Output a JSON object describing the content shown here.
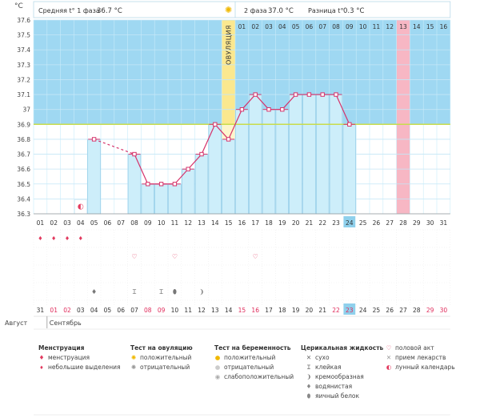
{
  "chart_data": {
    "type": "line",
    "ylabel": "°C",
    "y_ticks": [
      "36.3",
      "36.4",
      "36.5",
      "36.6",
      "36.7",
      "36.8",
      "36.9",
      "37",
      "37.1",
      "37.2",
      "37.3",
      "37.4",
      "37.5",
      "37.6"
    ],
    "ylim": [
      36.3,
      37.6
    ],
    "coverline": 36.9,
    "phase1_label": "Средняя t° 1 фаза",
    "phase1_value": "36.7 °C",
    "phase2_label": "2 фаза",
    "phase2_value": "37.0 °C",
    "diff_label": "Разница t°",
    "diff_value": "0.3 °C",
    "ovulation_label": "ОВУЛЯЦИЯ",
    "ovulation_index": 14,
    "cycle_days": [
      "01",
      "02",
      "03",
      "04",
      "05",
      "06",
      "07",
      "08",
      "09",
      "10",
      "11",
      "12",
      "13",
      "14",
      "15",
      "16",
      "17",
      "18",
      "19",
      "20",
      "21",
      "22",
      "23",
      "24",
      "25",
      "26",
      "27",
      "28",
      "29",
      "30",
      "31"
    ],
    "phase2_days": [
      "01",
      "02",
      "03",
      "04",
      "05",
      "06",
      "07",
      "08",
      "09",
      "10",
      "11",
      "12",
      "13",
      "14",
      "15",
      "16"
    ],
    "predicted_period_index": 27,
    "current_day_index": 23,
    "series": [
      {
        "values": [
          null,
          null,
          null,
          null,
          36.8,
          null,
          null,
          36.7,
          36.5,
          36.5,
          36.5,
          36.6,
          36.7,
          36.9,
          36.8,
          37.0,
          37.1,
          37.0,
          37.0,
          37.1,
          37.1,
          37.1,
          37.1,
          36.9,
          null,
          null,
          null,
          null,
          null,
          null,
          null
        ]
      }
    ],
    "dashed_gaps": [
      [
        4,
        7
      ]
    ],
    "calendar_dates": [
      "31",
      "01",
      "02",
      "03",
      "04",
      "05",
      "06",
      "07",
      "08",
      "09",
      "10",
      "11",
      "12",
      "13",
      "14",
      "15",
      "16",
      "17",
      "18",
      "19",
      "20",
      "21",
      "22",
      "23",
      "24",
      "25",
      "26",
      "27",
      "28",
      "29",
      "30"
    ],
    "weekend_indices": [
      1,
      2,
      8,
      9,
      15,
      16,
      22,
      23,
      29,
      30
    ],
    "month_prev": "Август",
    "month_next": "Сентябрь",
    "moon_index": 3,
    "menstruation_indices": [
      0,
      1,
      2,
      3
    ],
    "intercourse_indices": [
      7,
      10,
      16
    ],
    "fluid_marks": [
      {
        "index": 4,
        "kind": "watery"
      },
      {
        "index": 7,
        "kind": "sticky"
      },
      {
        "index": 9,
        "kind": "sticky"
      },
      {
        "index": 10,
        "kind": "egg-white"
      },
      {
        "index": 12,
        "kind": "creamy"
      }
    ]
  },
  "legend": {
    "menstruation": {
      "title": "Менструация",
      "items": [
        "менструация",
        "небольшие выделения"
      ]
    },
    "ovulation_test": {
      "title": "Тест на овуляцию",
      "items": [
        "положительный",
        "отрицательный"
      ]
    },
    "pregnancy_test": {
      "title": "Тест на беременность",
      "items": [
        "положительный",
        "отрицательный",
        "слабоположительный"
      ]
    },
    "cervical_fluid": {
      "title": "Церикальная жидкость",
      "items": [
        "сухо",
        "клейкая",
        "кремообразная",
        "водянистая",
        "яичный белок"
      ]
    },
    "other": {
      "items": [
        "половой акт",
        "прием лекарств",
        "лунный календарь"
      ]
    }
  },
  "colors": {
    "blue": "#9fd8f2",
    "grid": "#c4e6f6",
    "ovulation": "#fbe88f",
    "predicted": "#f7b7c4",
    "line": "#d6336b",
    "coverline": "#c9dc4c",
    "fill": "#cdeefa"
  }
}
